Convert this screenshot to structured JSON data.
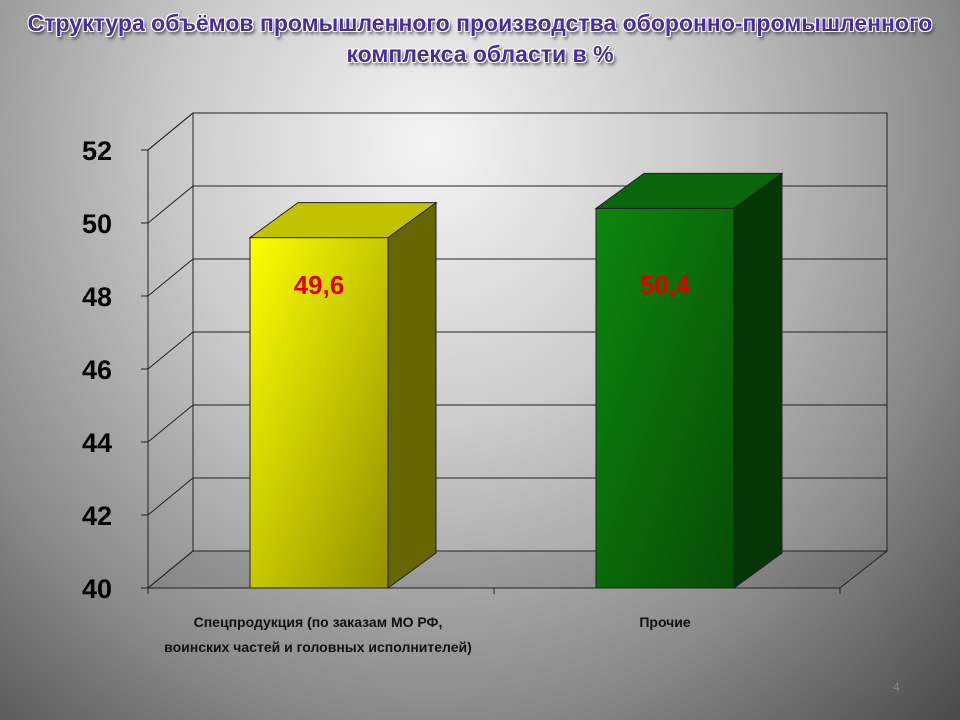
{
  "chart_data": {
    "type": "bar3d",
    "title": "Структура объёмов промышленного производства оборонно-промышленного комплекса области в %",
    "categories": [
      "Спецпродукция (по заказам МО РФ, воинских частей и головных исполнителей)",
      "Прочие"
    ],
    "values": [
      49.6,
      50.4
    ],
    "value_labels": [
      "49,6",
      "50,4"
    ],
    "colors": [
      "#f2f200",
      "#0c800c"
    ],
    "ylim": [
      40,
      52
    ],
    "yticks": [
      40,
      42,
      44,
      46,
      48,
      50,
      52
    ],
    "grid": true
  },
  "slide_number": "4"
}
